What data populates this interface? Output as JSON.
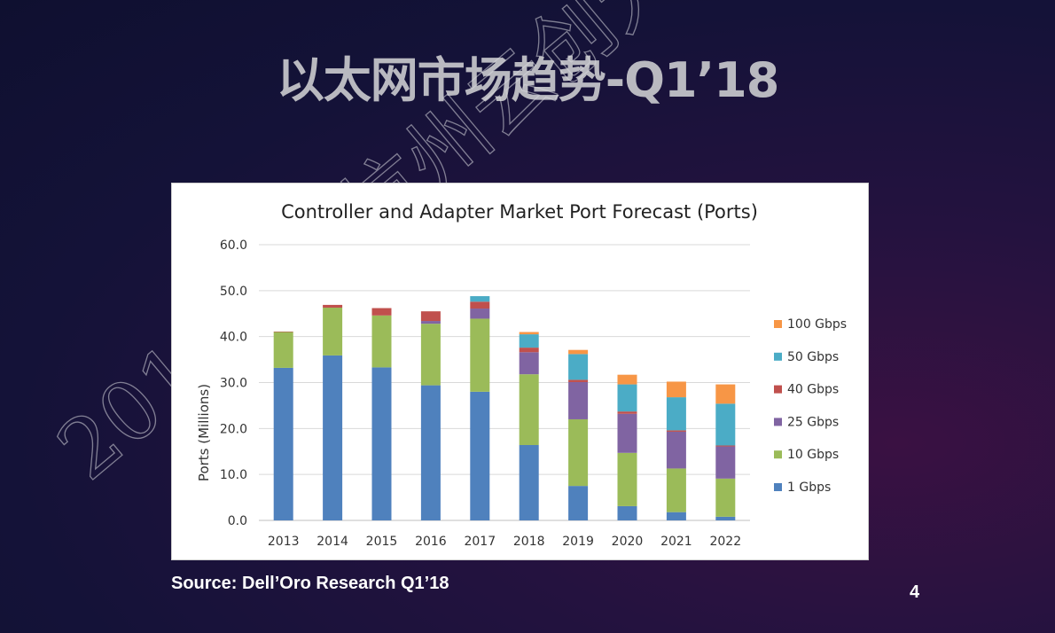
{
  "slide": {
    "title": "以太网市场趋势-Q1’18",
    "source": "Source: Dell’Oro Research Q1’18",
    "page_number": "4",
    "watermark": "2018中国杭州云创大会"
  },
  "colors": {
    "background": "#141238",
    "title": "#b9b9c0"
  },
  "chart_data": {
    "type": "bar",
    "stacked": true,
    "title": "Controller and Adapter Market Port Forecast (Ports)",
    "ylabel": "Ports (Millions)",
    "xlabel": "",
    "ylim": [
      0,
      60
    ],
    "yticks": [
      "0.0",
      "10.0",
      "20.0",
      "30.0",
      "40.0",
      "50.0",
      "60.0"
    ],
    "grid": true,
    "legend_position": "right",
    "categories": [
      "2013",
      "2014",
      "2015",
      "2016",
      "2017",
      "2018",
      "2019",
      "2020",
      "2021",
      "2022"
    ],
    "series": [
      {
        "name": "1 Gbps",
        "color": "#4f81bd",
        "values": [
          33.2,
          35.9,
          33.3,
          29.4,
          28.0,
          16.4,
          7.5,
          3.1,
          1.8,
          0.8
        ]
      },
      {
        "name": "10 Gbps",
        "color": "#9bbb59",
        "values": [
          7.8,
          10.4,
          11.3,
          13.4,
          15.9,
          15.4,
          14.5,
          11.6,
          9.5,
          8.3
        ]
      },
      {
        "name": "25 Gbps",
        "color": "#8064a2",
        "values": [
          0,
          0,
          0,
          0.6,
          2.2,
          4.8,
          8.1,
          8.5,
          8.0,
          7.0
        ]
      },
      {
        "name": "40 Gbps",
        "color": "#c0504d",
        "values": [
          0.1,
          0.6,
          1.6,
          2.1,
          1.5,
          1.0,
          0.5,
          0.5,
          0.3,
          0.2
        ]
      },
      {
        "name": "50 Gbps",
        "color": "#4bacc6",
        "values": [
          0,
          0,
          0,
          0,
          1.2,
          2.9,
          5.6,
          5.9,
          7.2,
          9.1
        ]
      },
      {
        "name": "100 Gbps",
        "color": "#f79646",
        "values": [
          0,
          0,
          0,
          0,
          0,
          0.5,
          0.9,
          2.1,
          3.4,
          4.2
        ]
      }
    ]
  }
}
